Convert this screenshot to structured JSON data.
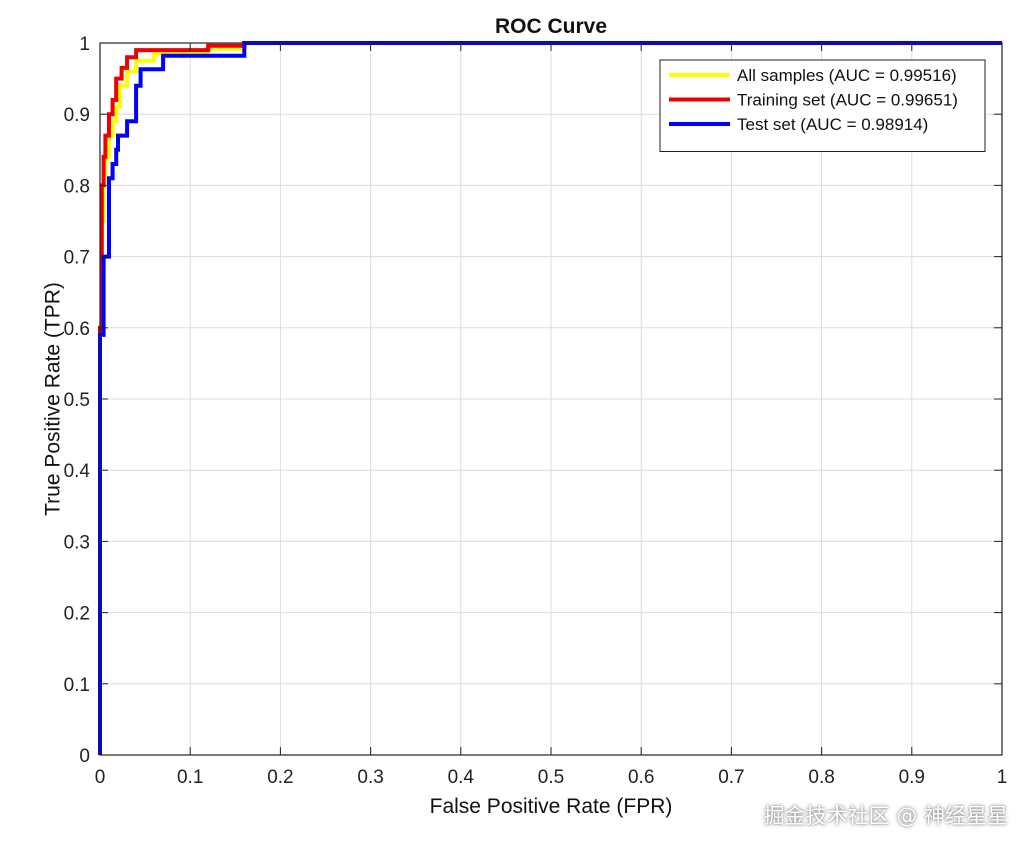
{
  "watermark": "掘金技术社区 @ 神经星星",
  "chart_data": {
    "type": "line",
    "title": "ROC Curve",
    "xlabel": "False Positive Rate (FPR)",
    "ylabel": "True Positive Rate (TPR)",
    "xlim": [
      0,
      1
    ],
    "ylim": [
      0,
      1
    ],
    "xticks": [
      0,
      0.1,
      0.2,
      0.3,
      0.4,
      0.5,
      0.6,
      0.7,
      0.8,
      0.9,
      1
    ],
    "yticks": [
      0,
      0.1,
      0.2,
      0.3,
      0.4,
      0.5,
      0.6,
      0.7,
      0.8,
      0.9,
      1
    ],
    "xtick_labels": [
      "0",
      "0.1",
      "0.2",
      "0.3",
      "0.4",
      "0.5",
      "0.6",
      "0.7",
      "0.8",
      "0.9",
      "1"
    ],
    "ytick_labels": [
      "0",
      "0.1",
      "0.2",
      "0.3",
      "0.4",
      "0.5",
      "0.6",
      "0.7",
      "0.8",
      "0.9",
      "1"
    ],
    "grid": true,
    "legend_position": "top-right",
    "series": [
      {
        "name": "All samples (AUC = 0.99516)",
        "color": "#ffff00",
        "x": [
          0,
          0,
          0.002,
          0.002,
          0.004,
          0.004,
          0.006,
          0.006,
          0.01,
          0.01,
          0.014,
          0.014,
          0.018,
          0.018,
          0.022,
          0.022,
          0.03,
          0.03,
          0.04,
          0.04,
          0.06,
          0.06,
          0.12,
          0.12,
          0.16,
          0.16,
          1
        ],
        "y": [
          0,
          0.6,
          0.6,
          0.75,
          0.75,
          0.8,
          0.8,
          0.84,
          0.84,
          0.87,
          0.87,
          0.89,
          0.89,
          0.91,
          0.91,
          0.94,
          0.94,
          0.96,
          0.96,
          0.975,
          0.975,
          0.985,
          0.985,
          0.992,
          0.992,
          1,
          1
        ]
      },
      {
        "name": "Training set (AUC = 0.99651)",
        "color": "#ee0000",
        "x": [
          0,
          0,
          0.002,
          0.002,
          0.004,
          0.004,
          0.006,
          0.006,
          0.01,
          0.01,
          0.014,
          0.014,
          0.018,
          0.018,
          0.024,
          0.024,
          0.03,
          0.03,
          0.04,
          0.04,
          0.12,
          0.12,
          0.16,
          0.16,
          1
        ],
        "y": [
          0,
          0.6,
          0.6,
          0.8,
          0.8,
          0.84,
          0.84,
          0.87,
          0.87,
          0.9,
          0.9,
          0.92,
          0.92,
          0.95,
          0.95,
          0.965,
          0.965,
          0.98,
          0.98,
          0.99,
          0.99,
          0.996,
          0.996,
          1,
          1
        ]
      },
      {
        "name": "Test set (AUC = 0.98914)",
        "color": "#0000ff",
        "x": [
          0,
          0,
          0.004,
          0.004,
          0.01,
          0.01,
          0.014,
          0.014,
          0.018,
          0.018,
          0.02,
          0.02,
          0.03,
          0.03,
          0.04,
          0.04,
          0.045,
          0.045,
          0.07,
          0.07,
          0.16,
          0.16,
          1
        ],
        "y": [
          0,
          0.59,
          0.59,
          0.7,
          0.7,
          0.81,
          0.81,
          0.83,
          0.83,
          0.85,
          0.85,
          0.87,
          0.87,
          0.89,
          0.89,
          0.94,
          0.94,
          0.963,
          0.963,
          0.982,
          0.982,
          1,
          1
        ]
      }
    ]
  }
}
